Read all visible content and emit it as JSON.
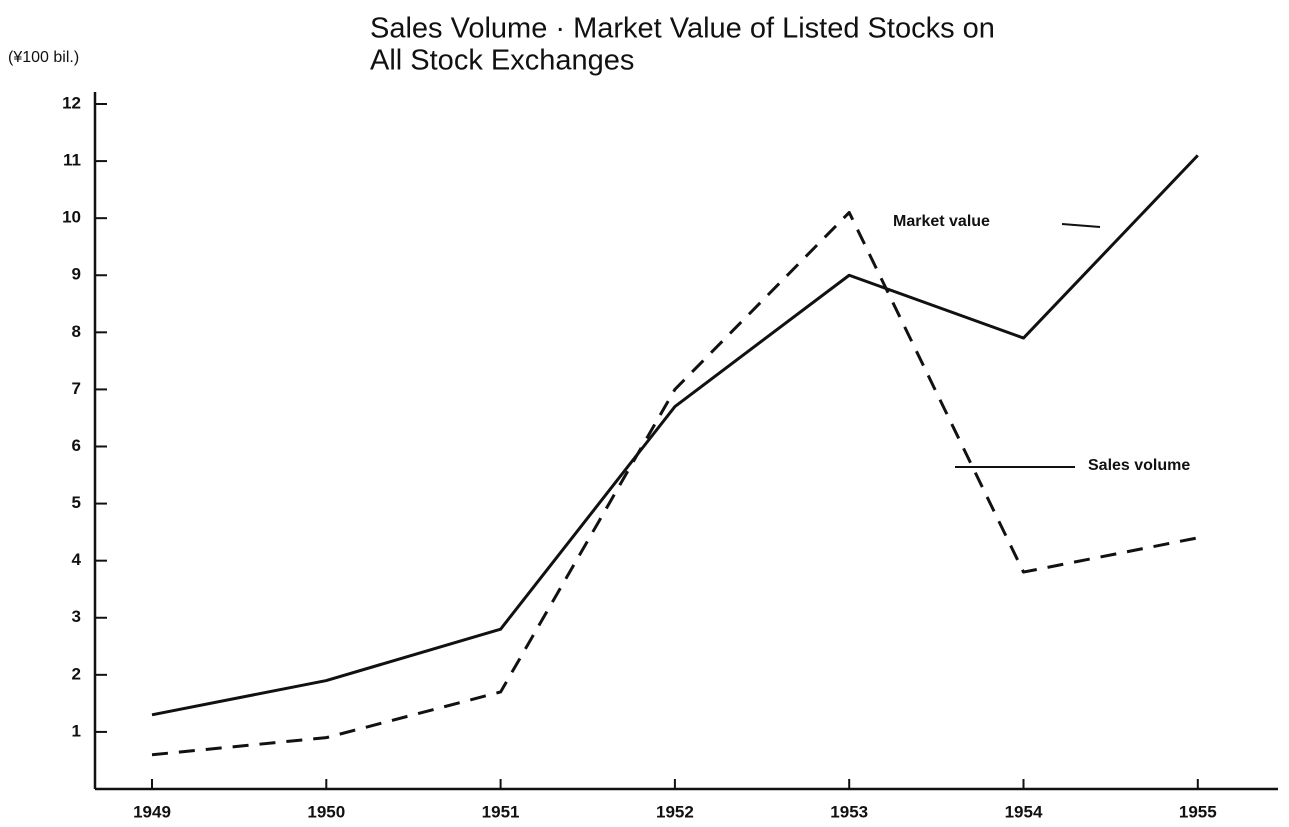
{
  "chart_data": {
    "type": "line",
    "title": [
      "Sales Volume · Market Value of Listed Stocks on",
      "All Stock Exchanges"
    ],
    "y_label": "(¥100 bil.)",
    "categories": [
      "1949",
      "1950",
      "1951",
      "1952",
      "1953",
      "1954",
      "1955"
    ],
    "series": [
      {
        "name": "Market value",
        "color": "#111111",
        "dash": false,
        "values": [
          1.3,
          1.9,
          2.8,
          6.7,
          9.0,
          7.9,
          11.1
        ]
      },
      {
        "name": "Sales volume",
        "color": "#111111",
        "dash": true,
        "values": [
          0.6,
          0.9,
          1.7,
          7.0,
          10.1,
          3.8,
          4.4
        ]
      }
    ],
    "ylim": [
      0,
      12
    ],
    "yticks": [
      1,
      2,
      3,
      4,
      5,
      6,
      7,
      8,
      9,
      10,
      11,
      12
    ],
    "grid": false
  }
}
